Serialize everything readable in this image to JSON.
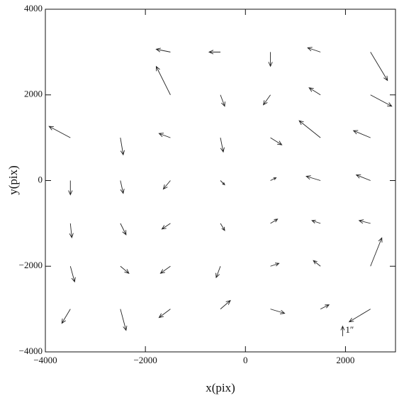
{
  "chart_data": {
    "type": "quiver",
    "xlabel": "x(pix)",
    "ylabel": "y(pix)",
    "xlim": [
      -4000,
      3000
    ],
    "ylim": [
      -4000,
      4000
    ],
    "xticks": [
      {
        "value": -4000,
        "label": "−4000"
      },
      {
        "value": -2000,
        "label": "−2000"
      },
      0,
      2000
    ],
    "yticks": [
      {
        "value": -4000,
        "label": "−4000"
      },
      {
        "value": -2000,
        "label": "−2000"
      },
      0,
      2000,
      4000
    ],
    "color": "#222",
    "key": {
      "label": "1″",
      "value": 1,
      "x": 2000,
      "y": -3500
    },
    "x": [
      -1500,
      -500,
      500,
      1500,
      2500,
      -1500,
      -500,
      500,
      1500,
      2500,
      -3500,
      -2500,
      -1500,
      -500,
      500,
      1500,
      2500,
      -3500,
      -2500,
      -1500,
      -500,
      500,
      1500,
      2500,
      -3500,
      -2500,
      -1500,
      -500,
      500,
      1500,
      2500,
      -3500,
      -2500,
      -1500,
      -500,
      500,
      1500,
      2500,
      -3500,
      -2500,
      -1500,
      -500,
      500,
      1500,
      2500
    ],
    "y": [
      3000,
      3000,
      3000,
      3000,
      3000,
      2000,
      2000,
      2000,
      2000,
      2000,
      1000,
      1000,
      1000,
      1000,
      1000,
      1000,
      1000,
      0,
      0,
      0,
      0,
      0,
      0,
      0,
      -1000,
      -1000,
      -1000,
      -1000,
      -1000,
      -1000,
      -1000,
      -2000,
      -2000,
      -2000,
      -2000,
      -2000,
      -2000,
      -2000,
      -3000,
      -3000,
      -3000,
      -3000,
      -3000,
      -3000,
      -3000
    ],
    "u": [
      -1,
      -0.8,
      0,
      -0.9,
      1.2,
      -1,
      0.3,
      -0.5,
      -0.8,
      1.5,
      -1.5,
      0.2,
      -0.8,
      0.2,
      0.8,
      -1.5,
      -1.2,
      0,
      0.2,
      -0.5,
      0.3,
      0.4,
      -1,
      -1,
      0.1,
      0.4,
      -0.6,
      0.3,
      0.5,
      -0.6,
      -0.8,
      0.3,
      0.6,
      -0.7,
      -0.3,
      0.6,
      -0.5,
      0.8,
      -0.6,
      0.4,
      -0.8,
      0.7,
      1,
      0.6,
      -1.5
    ],
    "v": [
      0.2,
      0,
      -1,
      0.3,
      -2,
      2,
      -0.8,
      -0.7,
      0.5,
      -0.8,
      0.8,
      -1.2,
      0.3,
      -1,
      -0.5,
      1.2,
      0.5,
      -1,
      -0.9,
      -0.6,
      -0.3,
      0.2,
      0.3,
      0.4,
      -1,
      -0.8,
      -0.4,
      -0.5,
      0.3,
      0.2,
      0.2,
      -1.1,
      -0.5,
      -0.5,
      -0.8,
      0.2,
      0.4,
      2,
      -1,
      -1.5,
      -0.6,
      0.6,
      -0.3,
      0.3,
      -0.9
    ]
  }
}
